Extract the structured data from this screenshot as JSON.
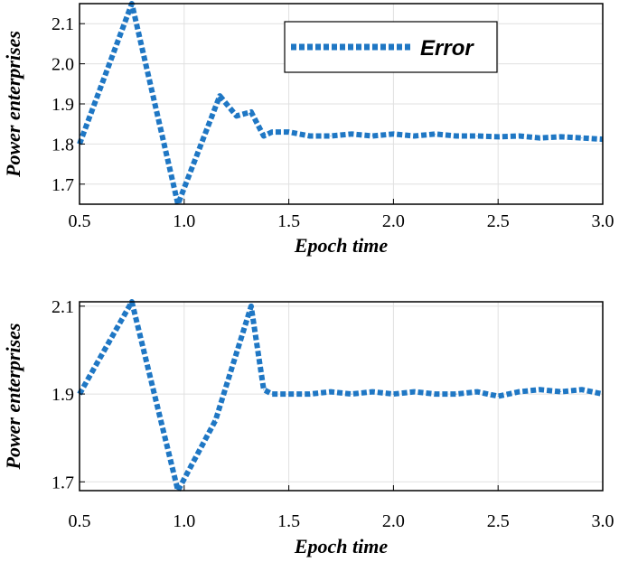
{
  "chart_data": [
    {
      "type": "line",
      "xlabel": "Epoch time",
      "ylabel": "Power enterprises",
      "xlim": [
        0.5,
        3.0
      ],
      "ylim": [
        1.65,
        2.15
      ],
      "xticks": [
        "0.5",
        "1.0",
        "1.5",
        "2.0",
        "2.5",
        "3.0"
      ],
      "yticks": [
        "1.7",
        "1.8",
        "1.9",
        "2.0",
        "2.1"
      ],
      "grid": true,
      "legend": "top-right",
      "series": [
        {
          "name": "Error",
          "color": "#1f77c4",
          "x": [
            0.5,
            0.75,
            0.97,
            1.17,
            1.25,
            1.32,
            1.38,
            1.42,
            1.5,
            1.6,
            1.7,
            1.8,
            1.9,
            2.0,
            2.1,
            2.2,
            2.3,
            2.4,
            2.5,
            2.6,
            2.7,
            2.8,
            2.9,
            3.0
          ],
          "y": [
            1.8,
            2.15,
            1.65,
            1.92,
            1.87,
            1.88,
            1.82,
            1.83,
            1.83,
            1.82,
            1.82,
            1.825,
            1.82,
            1.825,
            1.82,
            1.825,
            1.82,
            1.82,
            1.818,
            1.82,
            1.815,
            1.818,
            1.815,
            1.812
          ]
        }
      ]
    },
    {
      "type": "line",
      "xlabel": "Epoch time",
      "ylabel": "Power enterprises",
      "xlim": [
        0.5,
        3.0
      ],
      "ylim": [
        1.68,
        2.11
      ],
      "xticks": [
        "0.5",
        "1.0",
        "1.5",
        "2.0",
        "2.5",
        "3.0"
      ],
      "yticks": [
        "1.7",
        "1.9",
        "2.1"
      ],
      "grid": true,
      "series": [
        {
          "color": "#1f77c4",
          "x": [
            0.5,
            0.75,
            0.97,
            1.15,
            1.32,
            1.38,
            1.42,
            1.5,
            1.6,
            1.7,
            1.8,
            1.9,
            2.0,
            2.1,
            2.2,
            2.3,
            2.4,
            2.5,
            2.6,
            2.7,
            2.8,
            2.9,
            3.0
          ],
          "y": [
            1.9,
            2.11,
            1.68,
            1.84,
            2.1,
            1.91,
            1.9,
            1.9,
            1.9,
            1.905,
            1.9,
            1.905,
            1.9,
            1.905,
            1.9,
            1.9,
            1.905,
            1.895,
            1.905,
            1.91,
            1.905,
            1.91,
            1.9
          ]
        }
      ]
    }
  ]
}
